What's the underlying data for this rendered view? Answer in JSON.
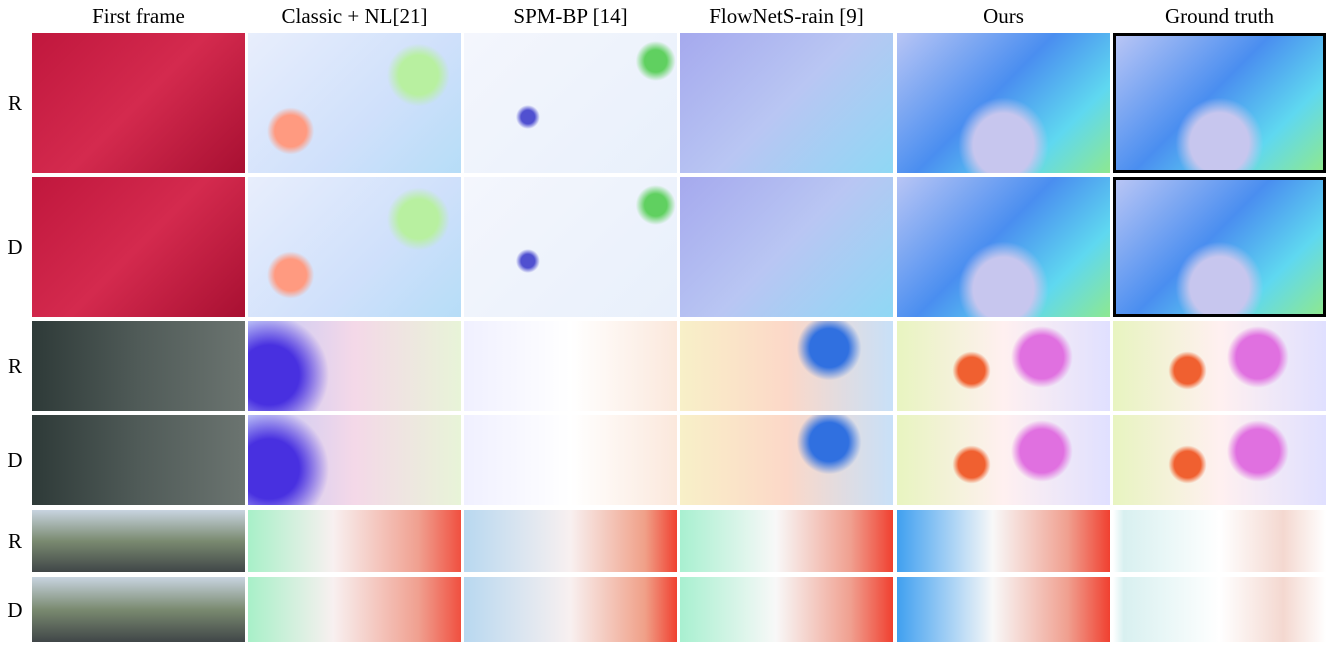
{
  "columns": [
    "First frame",
    "Classic + NL[21]",
    "SPM-BP [14]",
    "FlowNetS-rain [9]",
    "Ours",
    "Ground truth"
  ],
  "rows": [
    {
      "label": "R"
    },
    {
      "label": "D"
    },
    {
      "label": "R"
    },
    {
      "label": "D"
    },
    {
      "label": "R"
    },
    {
      "label": "D"
    }
  ]
}
